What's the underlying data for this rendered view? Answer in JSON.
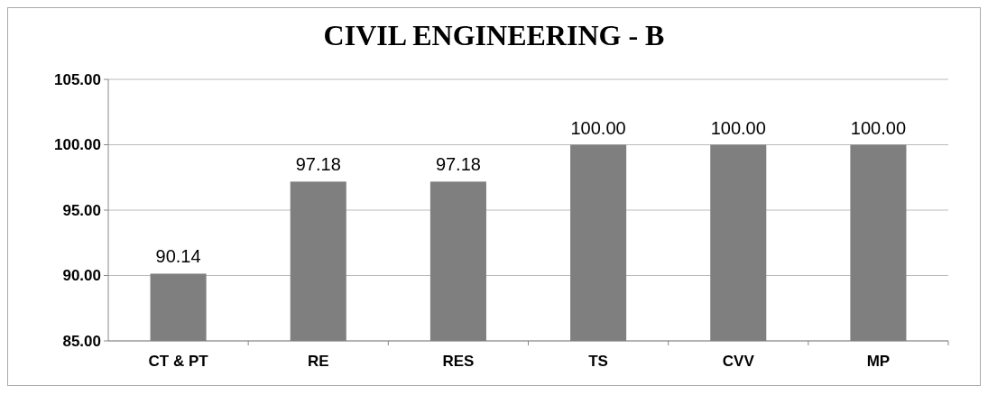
{
  "chart_data": {
    "type": "bar",
    "title": "CIVIL ENGINEERING - B",
    "categories": [
      "CT & PT",
      "RE",
      "RES",
      "TS",
      "CVV",
      "MP"
    ],
    "values": [
      90.14,
      97.18,
      97.18,
      100.0,
      100.0,
      100.0
    ],
    "value_labels": [
      "90.14",
      "97.18",
      "97.18",
      "100.00",
      "100.00",
      "100.00"
    ],
    "color": "#7f7f7f",
    "ylim": [
      85,
      105
    ],
    "yticks": [
      {
        "value": 85,
        "label": "85.00"
      },
      {
        "value": 90,
        "label": "90.00"
      },
      {
        "value": 95,
        "label": "95.00"
      },
      {
        "value": 100,
        "label": "100.00"
      },
      {
        "value": 105,
        "label": "105.00"
      }
    ],
    "grid": "y"
  }
}
